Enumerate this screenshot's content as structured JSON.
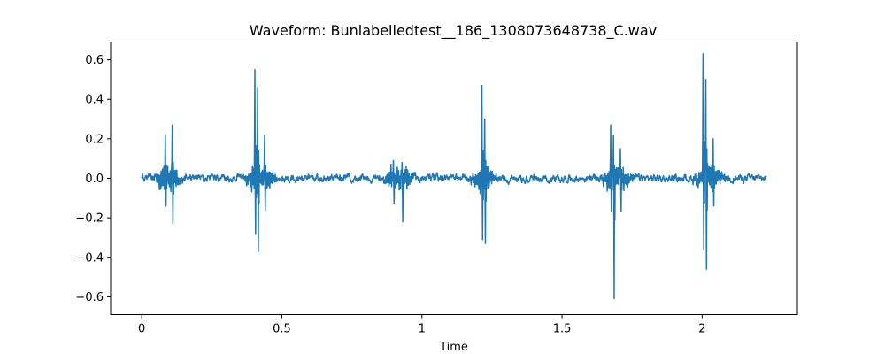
{
  "chart_data": {
    "type": "line",
    "title": "Waveform: Bunlabelledtest__186_1308073648738_C.wav",
    "xlabel": "Time",
    "ylabel": "",
    "xlim": [
      -0.111,
      2.34
    ],
    "ylim": [
      -0.69,
      0.69
    ],
    "x_ticks": [
      0,
      0.5,
      1,
      1.5,
      2
    ],
    "x_tick_labels": [
      "0",
      "0.5",
      "1",
      "1.5",
      "2"
    ],
    "y_ticks": [
      -0.6,
      -0.4,
      -0.2,
      0.0,
      0.2,
      0.4,
      0.6
    ],
    "y_tick_labels": [
      "−0.6",
      "−0.4",
      "−0.2",
      "0.0",
      "0.2",
      "0.4",
      "0.6"
    ],
    "grid": false,
    "series": [
      {
        "color": "#1f77b4",
        "x_start": 0,
        "x_end": 2.23,
        "noise_amplitude": 0.02,
        "bursts": [
          {
            "x": 0.085,
            "peak": 0.22,
            "trough": -0.14
          },
          {
            "x": 0.11,
            "peak": 0.27,
            "trough": -0.23
          },
          {
            "x": 0.405,
            "peak": 0.55,
            "trough": -0.28
          },
          {
            "x": 0.415,
            "peak": 0.46,
            "trough": -0.37
          },
          {
            "x": 0.44,
            "peak": 0.22,
            "trough": -0.16
          },
          {
            "x": 0.9,
            "peak": 0.09,
            "trough": -0.13
          },
          {
            "x": 0.93,
            "peak": 0.08,
            "trough": -0.22
          },
          {
            "x": 1.215,
            "peak": 0.47,
            "trough": -0.31
          },
          {
            "x": 1.225,
            "peak": 0.3,
            "trough": -0.33
          },
          {
            "x": 1.675,
            "peak": 0.27,
            "trough": -0.17
          },
          {
            "x": 1.685,
            "peak": 0.22,
            "trough": -0.61
          },
          {
            "x": 1.71,
            "peak": 0.15,
            "trough": -0.17
          },
          {
            "x": 2.005,
            "peak": 0.63,
            "trough": -0.36
          },
          {
            "x": 2.015,
            "peak": 0.5,
            "trough": -0.46
          },
          {
            "x": 2.04,
            "peak": 0.2,
            "trough": -0.14
          }
        ]
      }
    ]
  }
}
